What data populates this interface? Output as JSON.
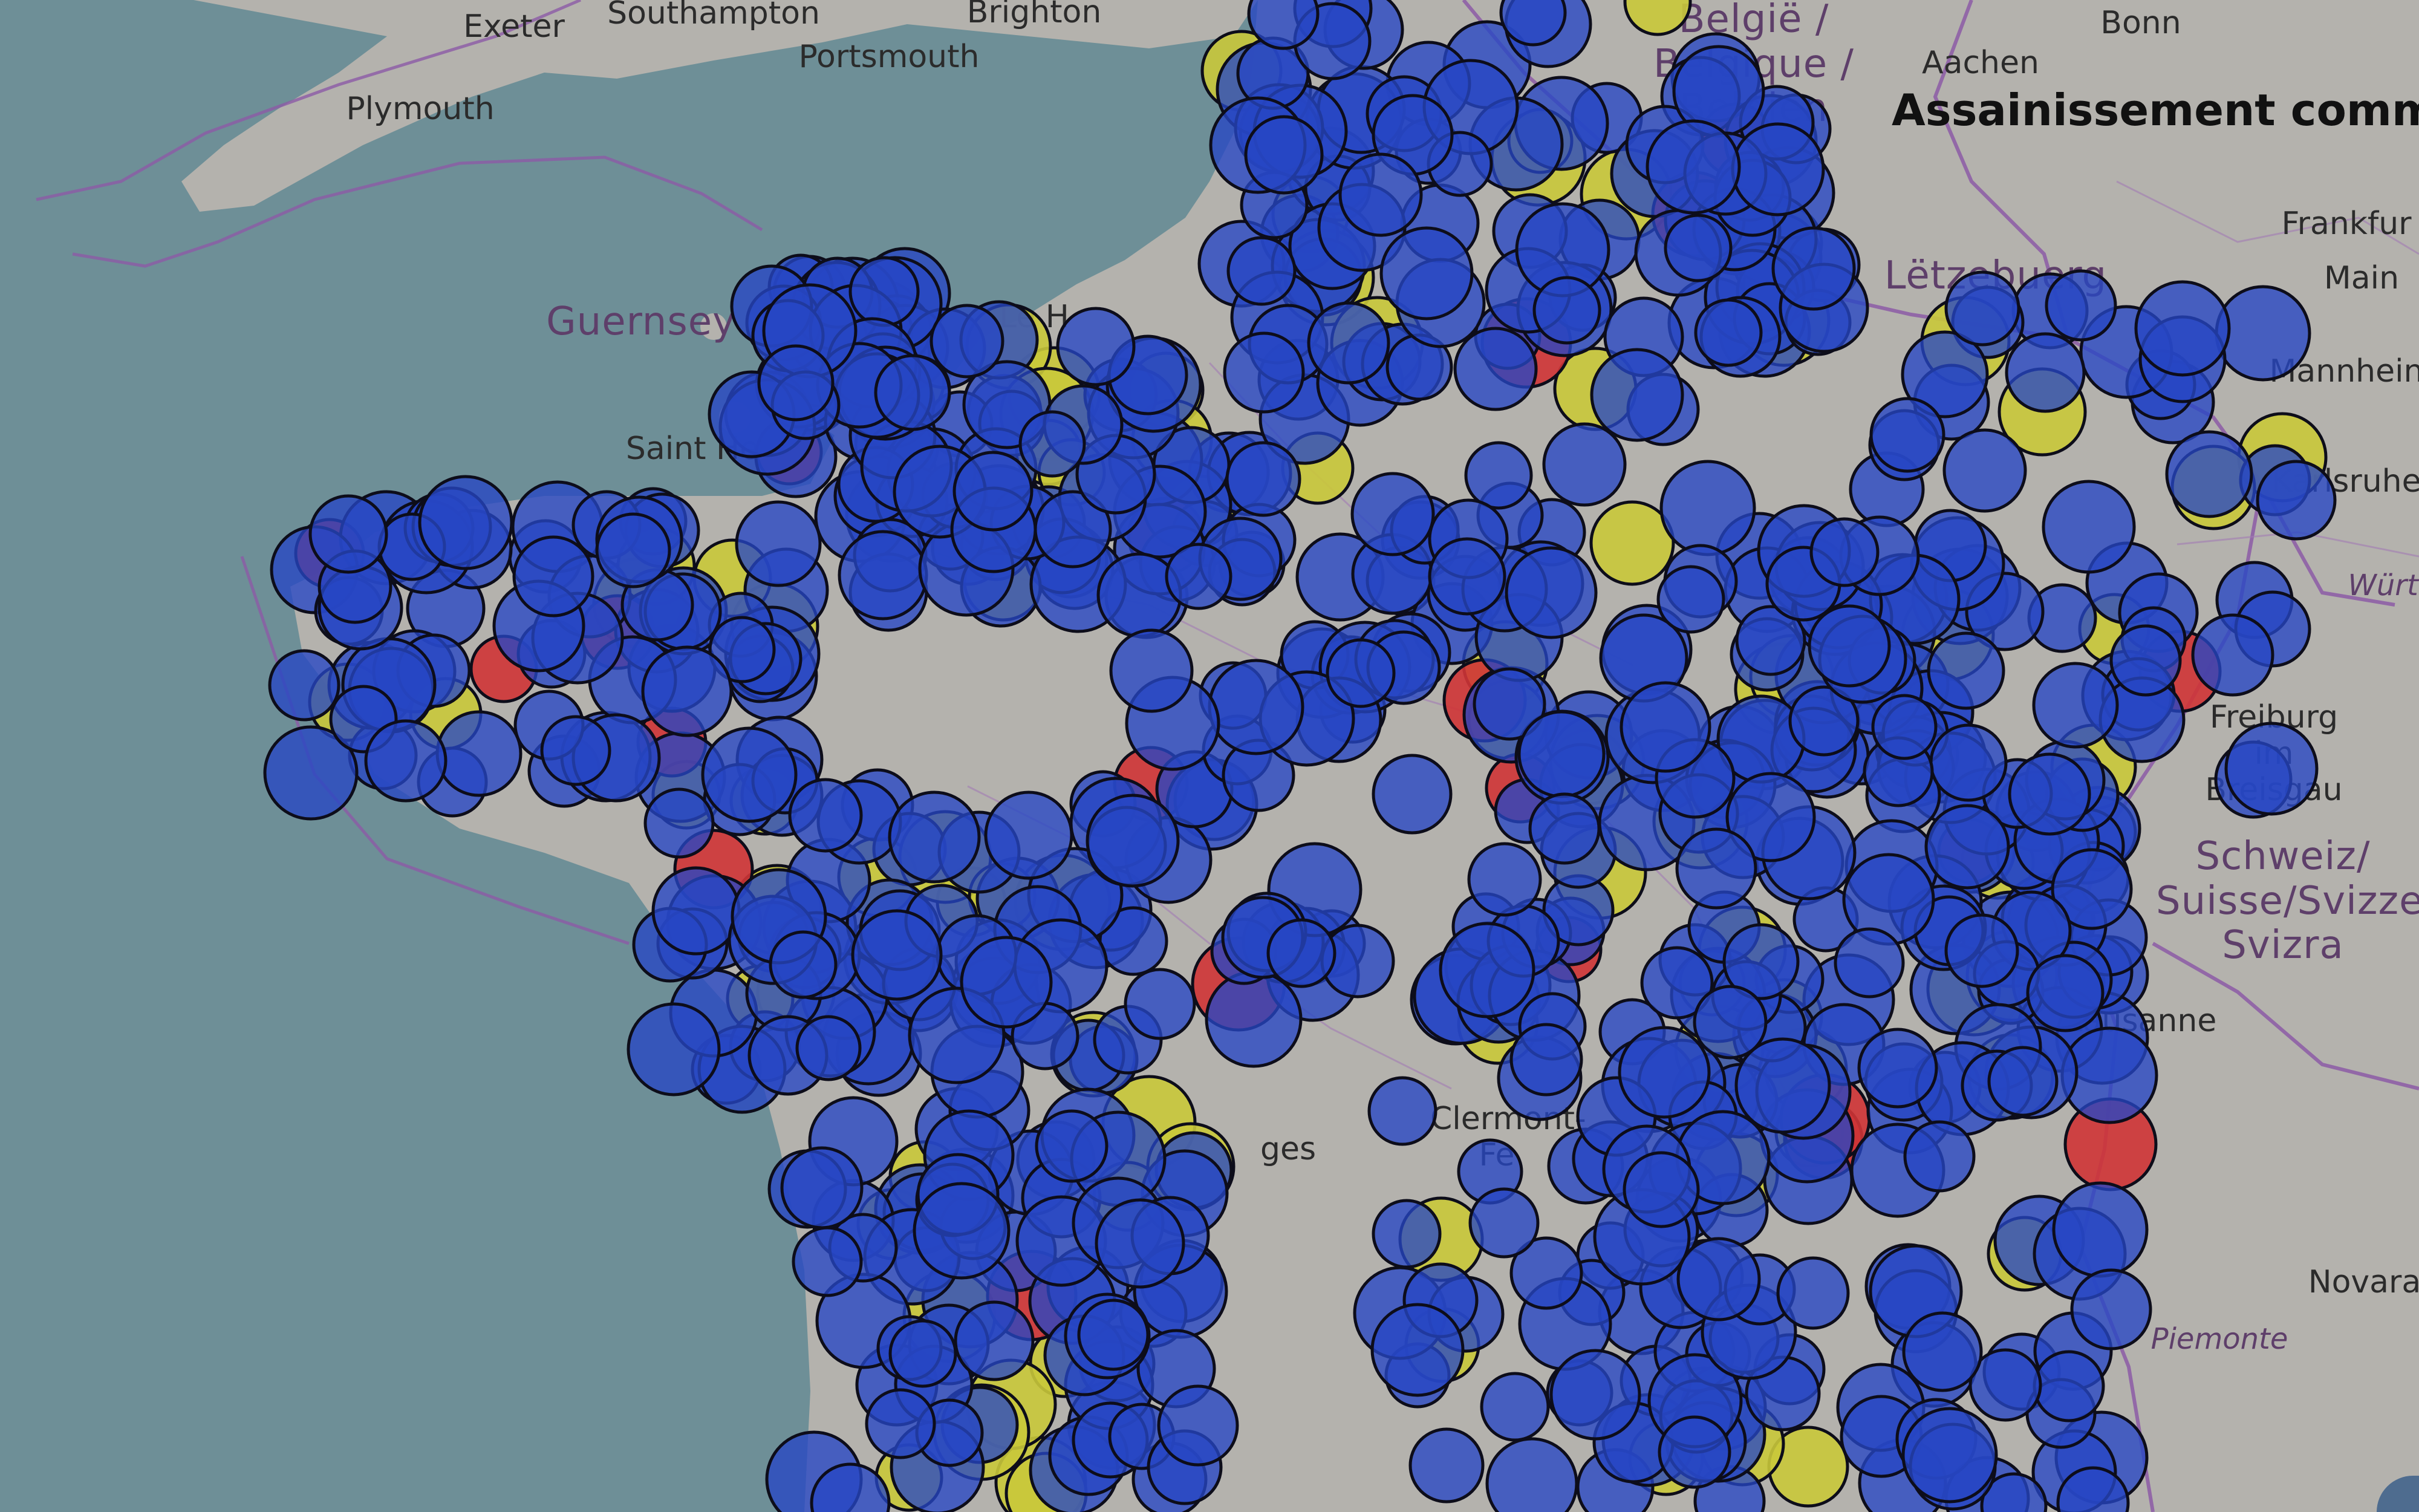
{
  "title": "Assainissement comm",
  "colors": {
    "sea": "#6e8f97",
    "land": "#b4b2ad",
    "border": "#8c5aa6",
    "marker_blue": "#2747c4",
    "marker_yellow": "#c9c83a",
    "marker_red": "#cf3436"
  },
  "places": [
    {
      "id": "exeter",
      "label": "Exeter",
      "kind": "city"
    },
    {
      "id": "southampton",
      "label": "Southampton",
      "kind": "city"
    },
    {
      "id": "brighton",
      "label": "Brighton",
      "kind": "city"
    },
    {
      "id": "portsmouth",
      "label": "Portsmouth",
      "kind": "city"
    },
    {
      "id": "plymouth",
      "label": "Plymouth",
      "kind": "city"
    },
    {
      "id": "guernsey",
      "label": "Guernsey",
      "kind": "country"
    },
    {
      "id": "saint-helier",
      "label": "Saint He",
      "kind": "city"
    },
    {
      "id": "le-havre",
      "label": "Le H",
      "kind": "city"
    },
    {
      "id": "belgie",
      "label": "België / Belgique / Belgien",
      "kind": "country"
    },
    {
      "id": "aachen",
      "label": "Aachen",
      "kind": "city"
    },
    {
      "id": "bonn",
      "label": "Bonn",
      "kind": "city"
    },
    {
      "id": "frankfurt",
      "label": "Frankfur",
      "kind": "city"
    },
    {
      "id": "main",
      "label": "Main",
      "kind": "city"
    },
    {
      "id": "mannheim",
      "label": "Mannhein",
      "kind": "city"
    },
    {
      "id": "karlsruhe",
      "label": "Karlsruhe",
      "kind": "city"
    },
    {
      "id": "letzebuerg",
      "label": "Lëtzebuerg",
      "kind": "country"
    },
    {
      "id": "freiburg",
      "label": "Freiburg im Breisgau",
      "kind": "city"
    },
    {
      "id": "schweiz",
      "label": "Schweiz/ Suisse/Svizze Svizra",
      "kind": "country"
    },
    {
      "id": "lausanne",
      "label": "Lausanne",
      "kind": "city"
    },
    {
      "id": "novara",
      "label": "Novara",
      "kind": "city"
    },
    {
      "id": "piemonte",
      "label": "Piemonte",
      "kind": "region"
    },
    {
      "id": "clermont",
      "label": "Clermont-Fe",
      "kind": "city"
    },
    {
      "id": "limoges",
      "label": "ges",
      "kind": "city"
    },
    {
      "id": "wurttemberg",
      "label": "Württ",
      "kind": "region"
    }
  ],
  "markers": {
    "legend_note": "",
    "groups": [
      {
        "color": "yellow",
        "count": 88
      },
      {
        "color": "red",
        "count": 24
      },
      {
        "color": "blue",
        "count": 720
      }
    ]
  }
}
